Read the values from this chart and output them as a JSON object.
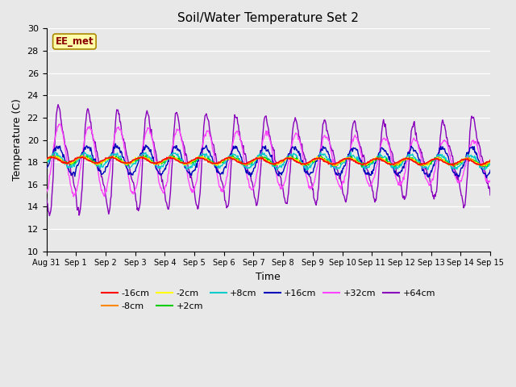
{
  "title": "Soil/Water Temperature Set 2",
  "xlabel": "Time",
  "ylabel": "Temperature (C)",
  "ylim": [
    10,
    30
  ],
  "yticks": [
    10,
    12,
    14,
    16,
    18,
    20,
    22,
    24,
    26,
    28,
    30
  ],
  "bg_color": "#e8e8e8",
  "watermark": "EE_met",
  "legend_colors": {
    "-16cm": "#ff0000",
    "-8cm": "#ff8800",
    "-2cm": "#ffff00",
    "+2cm": "#00cc00",
    "+8cm": "#00cccc",
    "+16cm": "#0000bb",
    "+32cm": "#ff44ff",
    "+64cm": "#8800bb"
  },
  "n_days": 15,
  "base_temp": 18.2,
  "base_decline": 0.012
}
